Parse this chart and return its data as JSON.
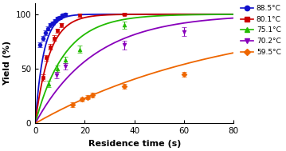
{
  "title": "",
  "xlabel": "Residence time (s)",
  "ylabel": "Yield (%)",
  "xlim": [
    0,
    80
  ],
  "ylim": [
    0,
    110
  ],
  "xticks": [
    0,
    20,
    40,
    60,
    80
  ],
  "yticks": [
    0,
    50,
    100
  ],
  "series": [
    {
      "label": "88.5°C",
      "color": "#1111cc",
      "marker": "o",
      "x": [
        2.0,
        3.0,
        4.0,
        5.0,
        6.0,
        7.0,
        8.0,
        9.0,
        10.0,
        11.0,
        12.0
      ],
      "y": [
        72,
        78,
        83,
        87,
        90,
        92,
        94,
        96,
        97,
        99,
        100
      ],
      "yerr": [
        2.5,
        2,
        2,
        2,
        2,
        1.5,
        1.5,
        1.5,
        1.5,
        1,
        1
      ],
      "k": 0.3
    },
    {
      "label": "80.1°C",
      "color": "#cc0000",
      "marker": "s",
      "x": [
        3.0,
        4.5,
        6.0,
        7.5,
        9.0,
        10.5,
        18.0,
        36.0
      ],
      "y": [
        42,
        60,
        70,
        78,
        85,
        90,
        99,
        100
      ],
      "yerr": [
        3,
        2.5,
        2.5,
        2.5,
        2,
        2,
        1.5,
        1
      ],
      "k": 0.175
    },
    {
      "label": "75.1°C",
      "color": "#22bb00",
      "marker": "^",
      "x": [
        5.5,
        9.0,
        12.0,
        18.0,
        36.0
      ],
      "y": [
        36,
        50,
        58,
        68,
        90
      ],
      "yerr": [
        3,
        3,
        3,
        3,
        3
      ],
      "k": 0.085
    },
    {
      "label": "70.2°C",
      "color": "#8800bb",
      "marker": "v",
      "x": [
        8.5,
        12.0,
        36.0,
        60.0
      ],
      "y": [
        44,
        52,
        72,
        84
      ],
      "yerr": [
        3,
        3,
        4,
        4
      ],
      "k": 0.042
    },
    {
      "label": "59.5°C",
      "color": "#ee6600",
      "marker": "D",
      "x": [
        15.0,
        19.0,
        21.0,
        23.0,
        36.0,
        60.0
      ],
      "y": [
        17,
        22,
        24,
        26,
        34,
        45
      ],
      "yerr": [
        2,
        2,
        2,
        2,
        2,
        2
      ],
      "k": 0.013
    }
  ]
}
